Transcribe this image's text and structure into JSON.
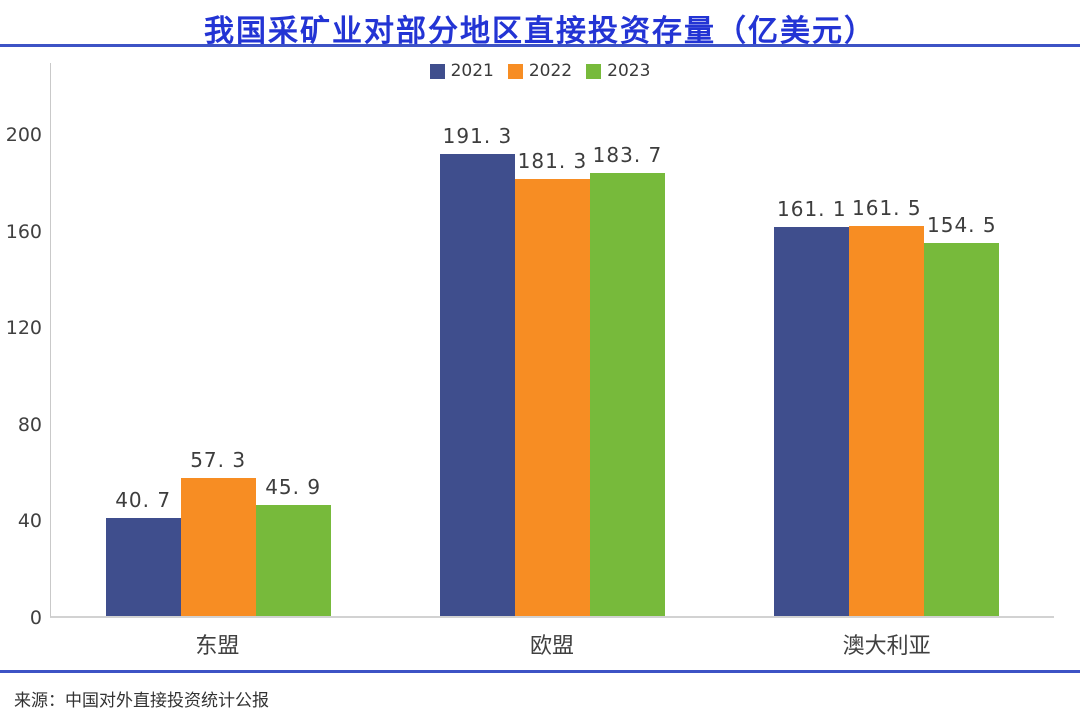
{
  "title": "我国采矿业对部分地区直接投资存量（亿美元）",
  "source": "来源：中国对外直接投资统计公报",
  "colors": {
    "title_text": "#2334d4",
    "divider_line": "#3d53c5",
    "series_2021": "#3f4e8d",
    "series_2022": "#f78d23",
    "series_2023": "#77ba3b",
    "axis_line": "#c9c9c9",
    "label_text": "#404040"
  },
  "chart_data": {
    "type": "bar",
    "title": "我国采矿业对部分地区直接投资存量（亿美元）",
    "categories": [
      "东盟",
      "欧盟",
      "澳大利亚"
    ],
    "series": [
      {
        "name": "2021",
        "color": "#3f4e8d",
        "values": [
          40.7,
          191.3,
          161.1
        ],
        "value_labels": [
          "40. 7",
          "191. 3",
          "161. 1"
        ]
      },
      {
        "name": "2022",
        "color": "#f78d23",
        "values": [
          57.3,
          181.3,
          161.5
        ],
        "value_labels": [
          "57. 3",
          "181. 3",
          "161. 5"
        ]
      },
      {
        "name": "2023",
        "color": "#77ba3b",
        "values": [
          45.9,
          183.7,
          154.5
        ],
        "value_labels": [
          "45. 9",
          "183. 7",
          "154. 5"
        ]
      }
    ],
    "xlabel": "",
    "ylabel": "",
    "yticks": [
      0,
      40,
      80,
      120,
      160,
      200
    ],
    "ylim": [
      0,
      230
    ],
    "grid": false,
    "legend_position": "top-center",
    "data_labels": true
  }
}
